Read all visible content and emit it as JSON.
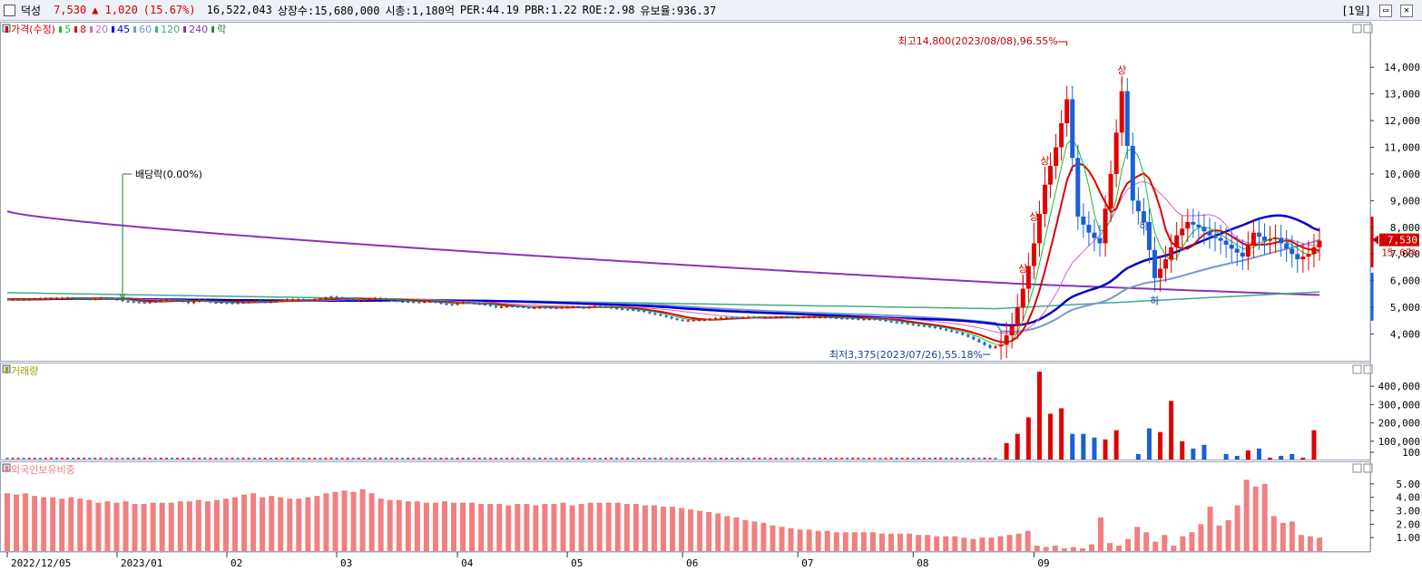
{
  "header": {
    "name": "덕성",
    "price": "7,530",
    "change": "▲ 1,020",
    "change_pct": "(15.67%)",
    "volume": "16,522,043",
    "shares": "상장수:15,680,000",
    "mcap": "시총:1,180억",
    "per": "PER:44.19",
    "pbr": "PBR:1.22",
    "roe": "ROE:2.98",
    "reserve": "유보율:936.37",
    "period": "[1일]"
  },
  "colors": {
    "up": "#e00000",
    "down": "#1a5fd6",
    "ma5": "#22bb22",
    "ma8": "#dd0000",
    "ma20": "#cc66cc",
    "ma45": "#0000cc",
    "ma60": "#7799cc",
    "ma120": "#44aa88",
    "ma240": "#8833bb",
    "volume_label": "#a0a000",
    "foreign": "#f08080"
  },
  "legend": [
    {
      "text": "가격(수정)",
      "color": "#d40000"
    },
    {
      "text": "5",
      "color": "#22bb22"
    },
    {
      "text": "8",
      "color": "#dd0000"
    },
    {
      "text": "20",
      "color": "#cc66cc"
    },
    {
      "text": "45",
      "color": "#0000cc"
    },
    {
      "text": "60",
      "color": "#7799cc"
    },
    {
      "text": "120",
      "color": "#44aa88"
    },
    {
      "text": "240",
      "color": "#8833bb"
    },
    {
      "text": "락",
      "color": "#228822"
    }
  ],
  "annotations": {
    "high": "최고14,800(2023/08/08),96.55%",
    "low": "최저3,375(2023/07/26),55.18%",
    "dividend": "배당락(0.00%)",
    "limit_up": "상",
    "limit_down": "하"
  },
  "current_price_label": "7,530",
  "current_pct_label": "15.67%",
  "chart_data": [
    {
      "type": "candlestick",
      "title": "가격(수정)",
      "yticks": [
        "4,000",
        "5,000",
        "6,000",
        "7,000",
        "8,000",
        "9,000",
        "10,000",
        "11,000",
        "12,000",
        "13,000",
        "14,000"
      ],
      "ylim": [
        3000,
        15500
      ],
      "notes": [
        [
          4,
          5300
        ],
        [
          6,
          5330
        ],
        [
          9,
          5350
        ],
        [
          11,
          5350
        ],
        [
          13,
          5340
        ],
        [
          15,
          5300
        ],
        [
          17,
          5350
        ],
        [
          19,
          5320
        ],
        [
          21,
          5240
        ],
        [
          23,
          5200
        ],
        [
          25,
          5180
        ],
        [
          27,
          5230
        ],
        [
          29,
          5300
        ],
        [
          31,
          5270
        ],
        [
          33,
          5160
        ],
        [
          35,
          5280
        ],
        [
          37,
          5190
        ],
        [
          39,
          5180
        ],
        [
          41,
          5160
        ],
        [
          43,
          5190
        ],
        [
          45,
          5250
        ],
        [
          47,
          5190
        ],
        [
          49,
          5250
        ],
        [
          51,
          5300
        ],
        [
          53,
          5300
        ],
        [
          55,
          5260
        ],
        [
          57,
          5330
        ],
        [
          59,
          5400
        ],
        [
          61,
          5340
        ],
        [
          63,
          5270
        ],
        [
          65,
          5280
        ],
        [
          67,
          5350
        ],
        [
          69,
          5300
        ],
        [
          71,
          5230
        ],
        [
          73,
          5210
        ],
        [
          75,
          5200
        ],
        [
          77,
          5230
        ],
        [
          79,
          5140
        ],
        [
          81,
          5100
        ],
        [
          83,
          5200
        ],
        [
          85,
          5150
        ],
        [
          87,
          5100
        ],
        [
          89,
          5000
        ],
        [
          91,
          5050
        ],
        [
          93,
          5030
        ],
        [
          95,
          4980
        ],
        [
          97,
          5000
        ],
        [
          99,
          4990
        ],
        [
          101,
          5000
        ],
        [
          103,
          5030
        ],
        [
          105,
          4980
        ],
        [
          107,
          5050
        ],
        [
          109,
          5010
        ],
        [
          111,
          4950
        ],
        [
          113,
          4920
        ],
        [
          115,
          4880
        ],
        [
          117,
          4780
        ],
        [
          119,
          4700
        ],
        [
          121,
          4580
        ],
        [
          123,
          4500
        ],
        [
          125,
          4530
        ],
        [
          127,
          4540
        ],
        [
          129,
          4600
        ],
        [
          131,
          4620
        ],
        [
          133,
          4600
        ],
        [
          135,
          4640
        ],
        [
          137,
          4620
        ],
        [
          139,
          4630
        ],
        [
          141,
          4650
        ],
        [
          143,
          4620
        ],
        [
          145,
          4640
        ],
        [
          147,
          4640
        ],
        [
          149,
          4640
        ],
        [
          151,
          4600
        ],
        [
          153,
          4590
        ],
        [
          155,
          4560
        ],
        [
          157,
          4570
        ],
        [
          159,
          4530
        ],
        [
          161,
          4450
        ],
        [
          163,
          4420
        ],
        [
          165,
          4340
        ],
        [
          167,
          4300
        ],
        [
          169,
          4240
        ],
        [
          171,
          4140
        ],
        [
          173,
          4050
        ],
        [
          175,
          3900
        ],
        [
          177,
          3700
        ],
        [
          179,
          3480
        ],
        [
          181,
          3600
        ],
        [
          183,
          4300
        ],
        [
          185,
          5700
        ],
        [
          187,
          7400
        ],
        [
          189,
          9600
        ],
        [
          191,
          11000
        ],
        [
          193,
          12800
        ],
        [
          195,
          8400
        ],
        [
          197,
          7800
        ],
        [
          199,
          7400
        ],
        [
          201,
          10000
        ],
        [
          203,
          13100
        ],
        [
          205,
          9000
        ],
        [
          207,
          8200
        ],
        [
          209,
          6100
        ],
        [
          211,
          6800
        ],
        [
          213,
          7700
        ],
        [
          215,
          8200
        ],
        [
          217,
          8000
        ],
        [
          219,
          7700
        ],
        [
          221,
          7500
        ],
        [
          223,
          7200
        ],
        [
          225,
          6900
        ],
        [
          227,
          7800
        ],
        [
          229,
          7500
        ],
        [
          231,
          7600
        ],
        [
          233,
          7200
        ],
        [
          235,
          6800
        ],
        [
          237,
          7000
        ],
        [
          239,
          7500
        ]
      ],
      "series": [
        {
          "name": "5"
        },
        {
          "name": "8"
        },
        {
          "name": "20"
        },
        {
          "name": "45"
        },
        {
          "name": "60"
        },
        {
          "name": "120"
        },
        {
          "name": "240"
        }
      ]
    },
    {
      "type": "bar",
      "title": "거래량",
      "yticks": [
        "100",
        "100,000",
        "200,000",
        "300,000",
        "400,000"
      ],
      "ylim": [
        0,
        480000
      ],
      "values": [
        [
          182,
          90000
        ],
        [
          184,
          140000
        ],
        [
          186,
          230000
        ],
        [
          188,
          480000
        ],
        [
          190,
          250000
        ],
        [
          192,
          280000
        ],
        [
          194,
          140000
        ],
        [
          196,
          140000
        ],
        [
          198,
          120000
        ],
        [
          200,
          110000
        ],
        [
          202,
          160000
        ],
        [
          206,
          30000
        ],
        [
          208,
          170000
        ],
        [
          210,
          150000
        ],
        [
          212,
          320000
        ],
        [
          214,
          100000
        ],
        [
          216,
          60000
        ],
        [
          218,
          80000
        ],
        [
          222,
          30000
        ],
        [
          224,
          20000
        ],
        [
          226,
          50000
        ],
        [
          228,
          60000
        ],
        [
          230,
          10000
        ],
        [
          232,
          20000
        ],
        [
          234,
          30000
        ],
        [
          236,
          10000
        ],
        [
          238,
          160000
        ]
      ]
    },
    {
      "type": "bar",
      "title": "외국인보유비중",
      "yticks": [
        "1.00",
        "2.00",
        "3.00",
        "4.00",
        "5.00"
      ],
      "ylim": [
        0,
        6.0
      ],
      "values": [
        4.3,
        4.2,
        4.3,
        4.1,
        4.0,
        4.0,
        3.9,
        4.0,
        3.9,
        3.8,
        3.6,
        3.7,
        3.6,
        3.7,
        3.5,
        3.5,
        3.6,
        3.6,
        3.6,
        3.7,
        3.7,
        3.8,
        3.7,
        3.8,
        3.9,
        4.0,
        4.2,
        4.3,
        4.0,
        4.1,
        4.0,
        3.9,
        3.9,
        4.0,
        4.1,
        4.3,
        4.4,
        4.5,
        4.4,
        4.6,
        4.3,
        3.9,
        3.8,
        3.8,
        3.7,
        3.7,
        3.6,
        3.6,
        3.7,
        3.6,
        3.6,
        3.6,
        3.5,
        3.5,
        3.5,
        3.4,
        3.5,
        3.5,
        3.4,
        3.5,
        3.5,
        3.6,
        3.4,
        3.5,
        3.6,
        3.6,
        3.6,
        3.6,
        3.5,
        3.5,
        3.4,
        3.4,
        3.3,
        3.3,
        3.2,
        3.1,
        3.0,
        2.9,
        2.8,
        2.6,
        2.5,
        2.3,
        2.2,
        2.1,
        1.9,
        1.8,
        1.7,
        1.6,
        1.6,
        1.5,
        1.5,
        1.4,
        1.4,
        1.4,
        1.4,
        1.4,
        1.3,
        1.3,
        1.3,
        1.3,
        1.2,
        1.2,
        1.1,
        1.1,
        1.1,
        1.0,
        0.9,
        1.0,
        1.0,
        1.1,
        1.2,
        1.3,
        1.5,
        0.4,
        0.3,
        0.4,
        0.2,
        0.3,
        0.2,
        0.5,
        2.5,
        0.6,
        0.4,
        0.9,
        1.8,
        1.4,
        0.7,
        1.2,
        0.4,
        1.1,
        1.4,
        2.0,
        3.3,
        1.9,
        2.3,
        3.4,
        5.3,
        4.8,
        5.0,
        2.6,
        2.1,
        2.2,
        1.2,
        1.1,
        1.0
      ]
    }
  ],
  "x_axis": {
    "labels": [
      {
        "i": 0,
        "text": "2022/12/05"
      },
      {
        "i": 20,
        "text": "2023/01"
      },
      {
        "i": 40,
        "text": "02"
      },
      {
        "i": 60,
        "text": "03"
      },
      {
        "i": 82,
        "text": "04"
      },
      {
        "i": 102,
        "text": "05"
      },
      {
        "i": 123,
        "text": "06"
      },
      {
        "i": 144,
        "text": "07"
      },
      {
        "i": 165,
        "text": "08"
      },
      {
        "i": 187,
        "text": "09"
      }
    ]
  }
}
